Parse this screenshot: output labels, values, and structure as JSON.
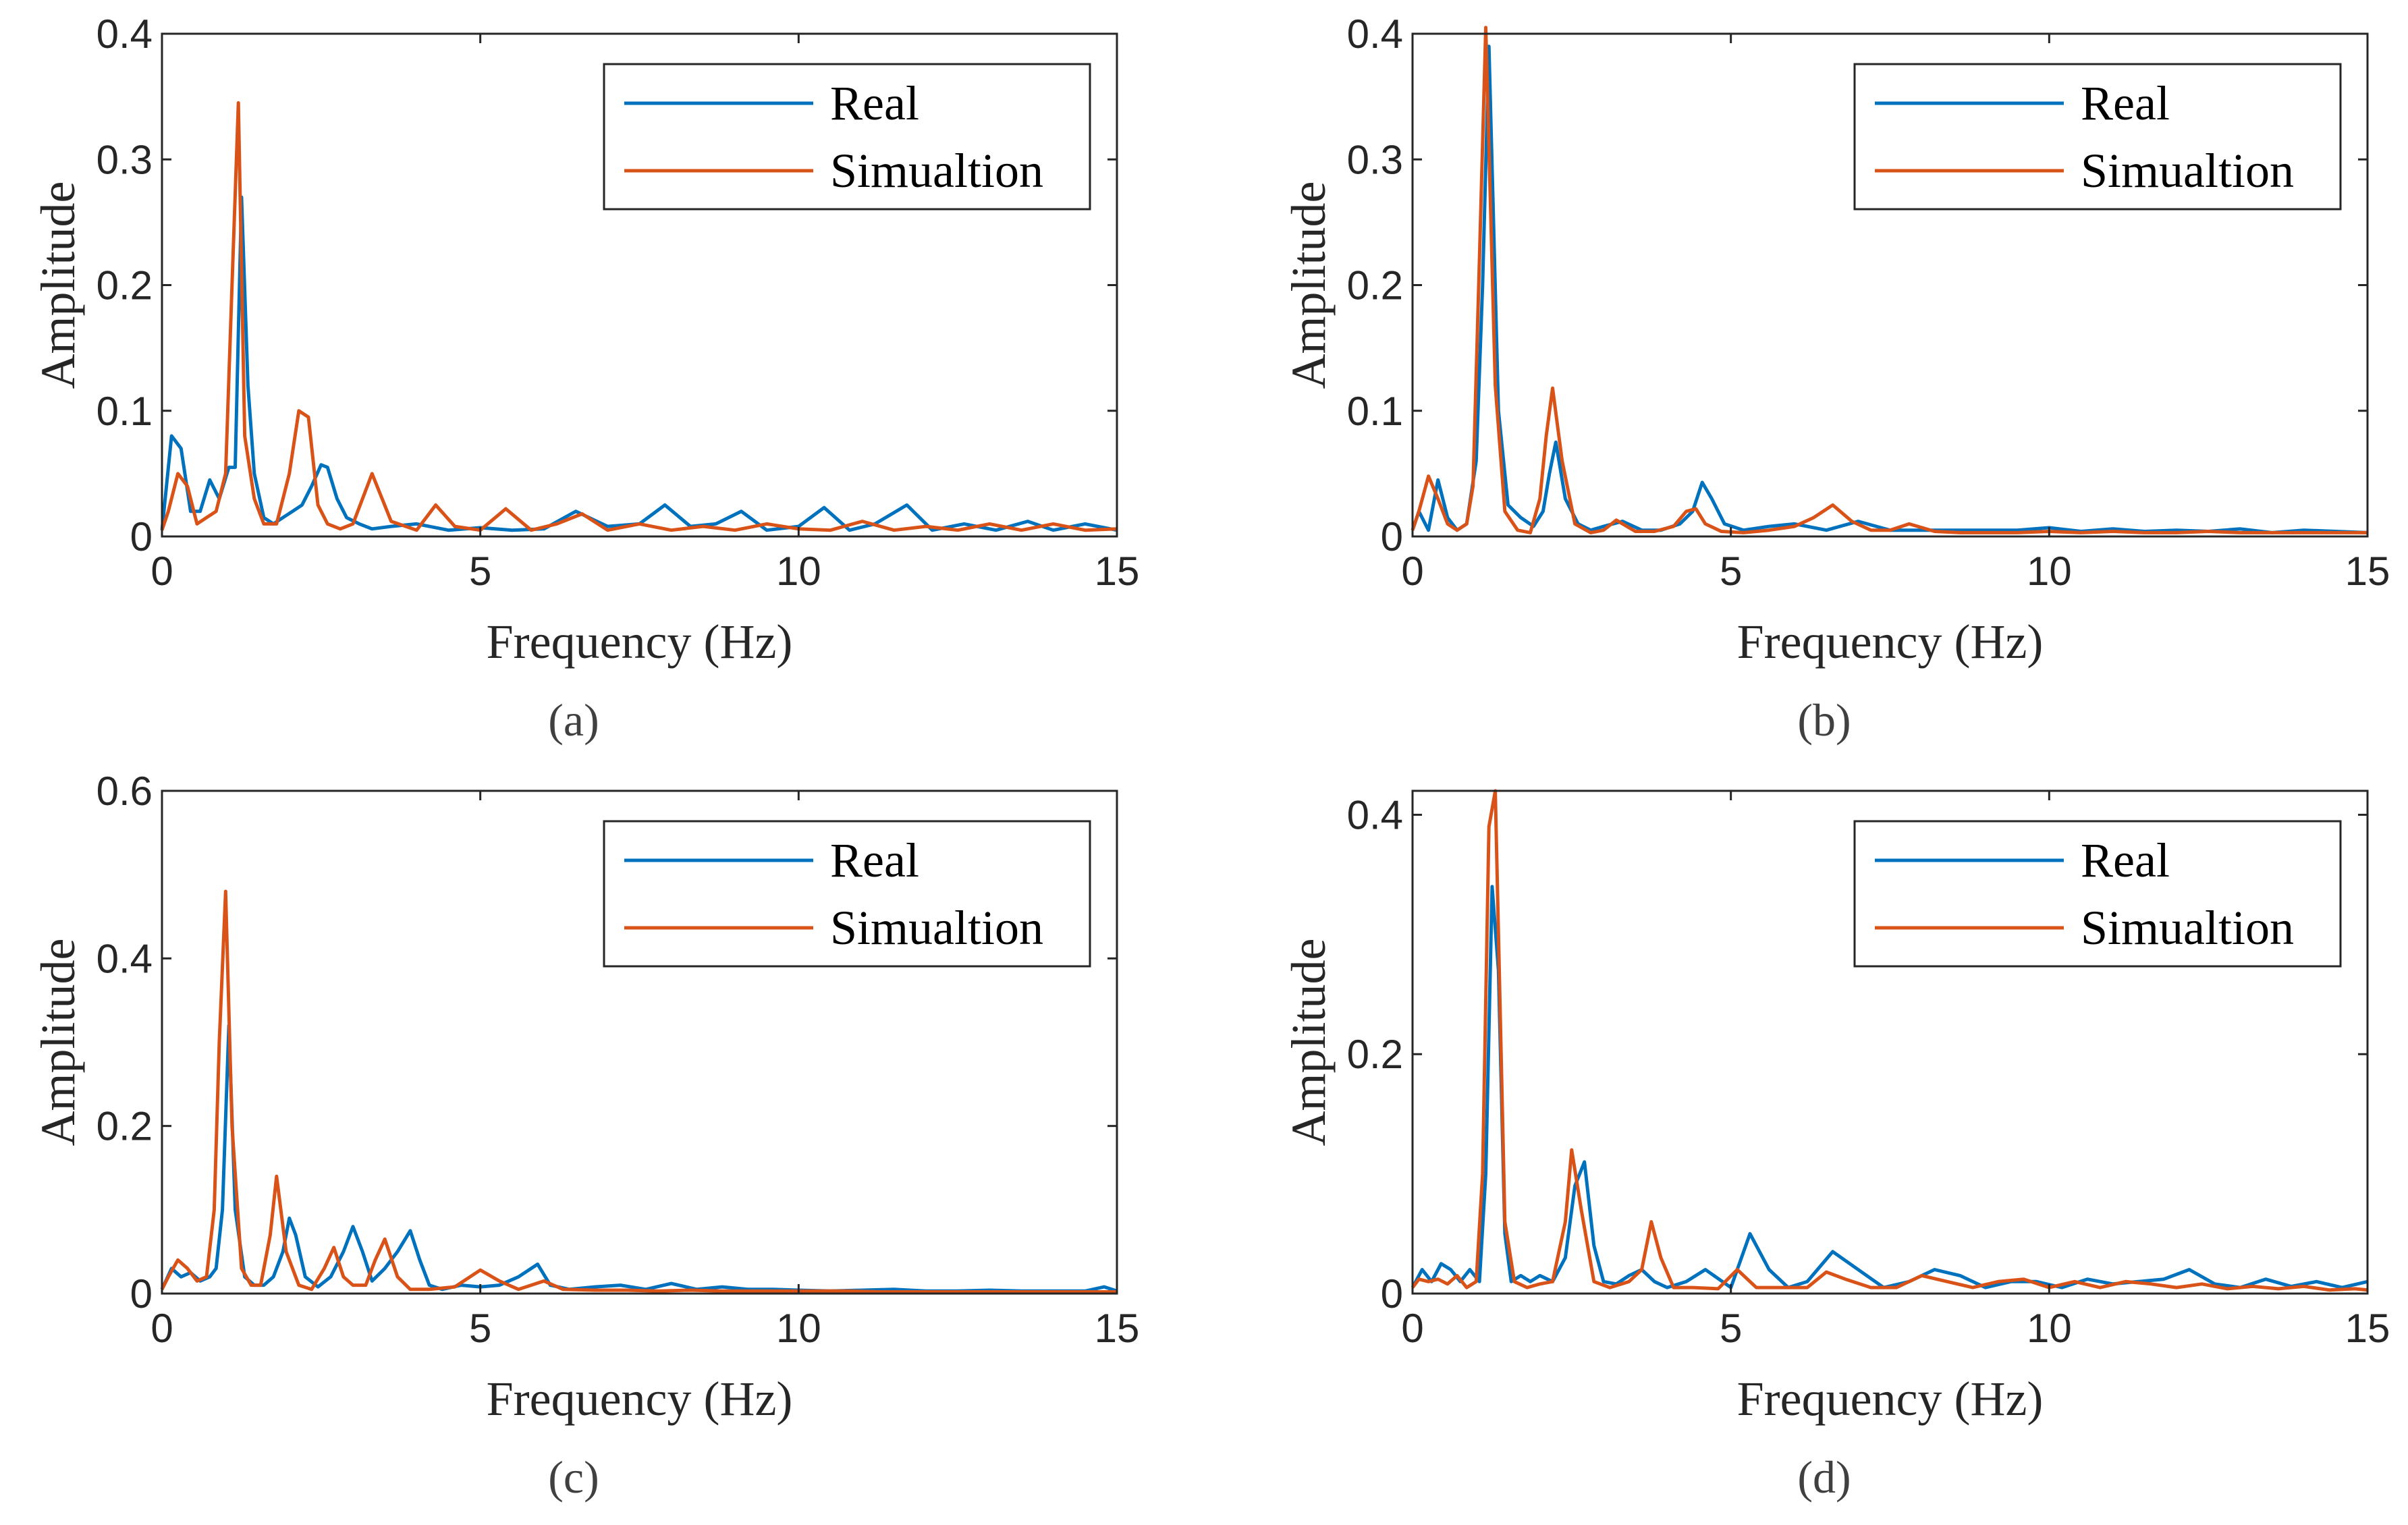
{
  "chart_data": [
    {
      "type": "line",
      "panel_caption": "(a)",
      "xlabel": "Frequency (Hz)",
      "ylabel": "Amplitude",
      "xlim": [
        0,
        15
      ],
      "ylim": [
        0,
        0.4
      ],
      "xticks": [
        "0",
        "5",
        "10",
        "15"
      ],
      "yticks": [
        "0",
        "0.1",
        "0.2",
        "0.3",
        "0.4"
      ],
      "legend_position": "top-right",
      "series": [
        {
          "name": "Real",
          "color": "#0072BD",
          "x": [
            0,
            0.15,
            0.3,
            0.45,
            0.6,
            0.75,
            0.9,
            1.05,
            1.15,
            1.25,
            1.35,
            1.45,
            1.6,
            1.75,
            1.9,
            2.05,
            2.2,
            2.35,
            2.5,
            2.6,
            2.75,
            2.9,
            3.1,
            3.3,
            3.6,
            4.0,
            4.5,
            5.0,
            5.5,
            6.0,
            6.5,
            7.0,
            7.5,
            7.9,
            8.3,
            8.7,
            9.1,
            9.5,
            10.0,
            10.4,
            10.8,
            11.2,
            11.7,
            12.1,
            12.6,
            13.1,
            13.6,
            14.0,
            14.5,
            15.0
          ],
          "y": [
            0.005,
            0.08,
            0.07,
            0.02,
            0.02,
            0.045,
            0.03,
            0.055,
            0.055,
            0.27,
            0.12,
            0.05,
            0.015,
            0.01,
            0.015,
            0.02,
            0.025,
            0.04,
            0.057,
            0.055,
            0.03,
            0.015,
            0.01,
            0.006,
            0.008,
            0.01,
            0.005,
            0.007,
            0.005,
            0.006,
            0.02,
            0.008,
            0.01,
            0.025,
            0.008,
            0.01,
            0.02,
            0.005,
            0.008,
            0.023,
            0.005,
            0.01,
            0.025,
            0.005,
            0.01,
            0.005,
            0.012,
            0.005,
            0.01,
            0.005
          ]
        },
        {
          "name": "Simualtion",
          "color": "#D95319",
          "x": [
            0,
            0.1,
            0.25,
            0.4,
            0.55,
            0.7,
            0.85,
            1.0,
            1.1,
            1.2,
            1.3,
            1.45,
            1.6,
            1.8,
            2.0,
            2.15,
            2.3,
            2.45,
            2.6,
            2.8,
            3.0,
            3.3,
            3.6,
            4.0,
            4.3,
            4.6,
            5.0,
            5.4,
            5.8,
            6.2,
            6.6,
            7.0,
            7.5,
            8.0,
            8.5,
            9.0,
            9.5,
            10.0,
            10.5,
            11.0,
            11.5,
            12.0,
            12.5,
            13.0,
            13.5,
            14.0,
            14.5,
            15.0
          ],
          "y": [
            0.005,
            0.02,
            0.05,
            0.04,
            0.01,
            0.015,
            0.02,
            0.05,
            0.2,
            0.345,
            0.08,
            0.03,
            0.01,
            0.01,
            0.05,
            0.1,
            0.095,
            0.025,
            0.01,
            0.006,
            0.01,
            0.05,
            0.012,
            0.005,
            0.025,
            0.008,
            0.005,
            0.022,
            0.005,
            0.01,
            0.018,
            0.005,
            0.01,
            0.005,
            0.008,
            0.005,
            0.01,
            0.006,
            0.005,
            0.012,
            0.005,
            0.008,
            0.005,
            0.01,
            0.005,
            0.01,
            0.005,
            0.006
          ]
        }
      ]
    },
    {
      "type": "line",
      "panel_caption": "(b)",
      "xlabel": "Frequency (Hz)",
      "ylabel": "Amplitude",
      "xlim": [
        0,
        15
      ],
      "ylim": [
        0,
        0.4
      ],
      "xticks": [
        "0",
        "5",
        "10",
        "15"
      ],
      "yticks": [
        "0",
        "0.1",
        "0.2",
        "0.3",
        "0.4"
      ],
      "legend_position": "top-right",
      "series": [
        {
          "name": "Real",
          "color": "#0072BD",
          "x": [
            0,
            0.1,
            0.25,
            0.4,
            0.55,
            0.7,
            0.85,
            1.0,
            1.1,
            1.2,
            1.35,
            1.5,
            1.7,
            1.9,
            2.05,
            2.15,
            2.25,
            2.4,
            2.6,
            2.8,
            3.0,
            3.3,
            3.6,
            3.9,
            4.2,
            4.4,
            4.55,
            4.7,
            4.9,
            5.2,
            5.6,
            6.0,
            6.5,
            7.0,
            7.5,
            8.0,
            8.5,
            9.0,
            9.5,
            10.0,
            10.5,
            11.0,
            11.5,
            12.0,
            12.5,
            13.0,
            13.5,
            14.0,
            14.5,
            15.0
          ],
          "y": [
            0.005,
            0.02,
            0.005,
            0.045,
            0.015,
            0.005,
            0.01,
            0.06,
            0.2,
            0.39,
            0.1,
            0.025,
            0.015,
            0.008,
            0.02,
            0.05,
            0.075,
            0.03,
            0.01,
            0.005,
            0.008,
            0.012,
            0.005,
            0.005,
            0.01,
            0.02,
            0.043,
            0.03,
            0.01,
            0.005,
            0.008,
            0.01,
            0.005,
            0.012,
            0.005,
            0.005,
            0.005,
            0.005,
            0.005,
            0.007,
            0.004,
            0.006,
            0.004,
            0.005,
            0.004,
            0.006,
            0.003,
            0.005,
            0.004,
            0.003
          ]
        },
        {
          "name": "Simualtion",
          "color": "#D95319",
          "x": [
            0,
            0.1,
            0.25,
            0.4,
            0.55,
            0.7,
            0.85,
            0.95,
            1.05,
            1.15,
            1.3,
            1.45,
            1.65,
            1.85,
            2.0,
            2.1,
            2.2,
            2.35,
            2.55,
            2.8,
            3.0,
            3.2,
            3.5,
            3.8,
            4.1,
            4.3,
            4.45,
            4.6,
            4.85,
            5.2,
            5.6,
            6.0,
            6.3,
            6.6,
            6.9,
            7.2,
            7.5,
            7.8,
            8.2,
            8.6,
            9.0,
            9.5,
            10.0,
            10.5,
            11.0,
            11.5,
            12.0,
            12.5,
            13.0,
            13.5,
            14.0,
            14.5,
            15.0
          ],
          "y": [
            0.005,
            0.02,
            0.048,
            0.03,
            0.01,
            0.005,
            0.01,
            0.04,
            0.22,
            0.405,
            0.12,
            0.02,
            0.005,
            0.003,
            0.03,
            0.08,
            0.118,
            0.06,
            0.01,
            0.003,
            0.005,
            0.013,
            0.004,
            0.004,
            0.008,
            0.02,
            0.022,
            0.01,
            0.004,
            0.003,
            0.005,
            0.008,
            0.015,
            0.025,
            0.012,
            0.005,
            0.005,
            0.01,
            0.004,
            0.003,
            0.003,
            0.003,
            0.004,
            0.003,
            0.004,
            0.003,
            0.003,
            0.004,
            0.003,
            0.003,
            0.003,
            0.003,
            0.003
          ]
        }
      ]
    },
    {
      "type": "line",
      "panel_caption": "(c)",
      "xlabel": "Frequency (Hz)",
      "ylabel": "Amplitude",
      "xlim": [
        0,
        15
      ],
      "ylim": [
        0,
        0.6
      ],
      "xticks": [
        "0",
        "5",
        "10",
        "15"
      ],
      "yticks": [
        "0",
        "0.2",
        "0.4",
        "0.6"
      ],
      "legend_position": "top-right",
      "series": [
        {
          "name": "Real",
          "color": "#0072BD",
          "x": [
            0,
            0.15,
            0.3,
            0.45,
            0.6,
            0.75,
            0.85,
            0.95,
            1.05,
            1.15,
            1.3,
            1.45,
            1.6,
            1.75,
            1.9,
            2.0,
            2.1,
            2.25,
            2.45,
            2.65,
            2.85,
            3.0,
            3.15,
            3.3,
            3.5,
            3.7,
            3.9,
            4.05,
            4.2,
            4.4,
            4.7,
            5.0,
            5.3,
            5.6,
            5.9,
            6.1,
            6.4,
            6.8,
            7.2,
            7.6,
            8.0,
            8.4,
            8.8,
            9.2,
            9.6,
            10.0,
            10.5,
            11.0,
            11.5,
            12.0,
            12.5,
            13.0,
            13.5,
            14.0,
            14.5,
            14.8,
            15.0
          ],
          "y": [
            0.005,
            0.03,
            0.02,
            0.025,
            0.015,
            0.02,
            0.03,
            0.1,
            0.32,
            0.1,
            0.02,
            0.01,
            0.01,
            0.02,
            0.05,
            0.09,
            0.07,
            0.02,
            0.008,
            0.02,
            0.05,
            0.08,
            0.05,
            0.015,
            0.03,
            0.05,
            0.075,
            0.04,
            0.01,
            0.005,
            0.01,
            0.008,
            0.01,
            0.02,
            0.035,
            0.01,
            0.005,
            0.008,
            0.01,
            0.005,
            0.012,
            0.005,
            0.008,
            0.005,
            0.005,
            0.004,
            0.003,
            0.004,
            0.005,
            0.003,
            0.003,
            0.004,
            0.003,
            0.003,
            0.003,
            0.008,
            0.003
          ]
        },
        {
          "name": "Simualtion",
          "color": "#D95319",
          "x": [
            0,
            0.1,
            0.25,
            0.4,
            0.55,
            0.7,
            0.82,
            0.9,
            1.0,
            1.1,
            1.25,
            1.4,
            1.55,
            1.7,
            1.8,
            1.95,
            2.15,
            2.35,
            2.55,
            2.7,
            2.85,
            3.0,
            3.2,
            3.35,
            3.5,
            3.7,
            3.9,
            4.2,
            4.6,
            5.0,
            5.3,
            5.6,
            6.0,
            6.3,
            6.8,
            7.3,
            7.8,
            8.3,
            8.8,
            9.3,
            9.8,
            10.3,
            10.8,
            11.3,
            11.8,
            12.3,
            12.8,
            13.3,
            13.8,
            14.3,
            14.8,
            15.0
          ],
          "y": [
            0.005,
            0.02,
            0.04,
            0.03,
            0.015,
            0.02,
            0.1,
            0.3,
            0.48,
            0.2,
            0.03,
            0.01,
            0.01,
            0.07,
            0.14,
            0.05,
            0.01,
            0.005,
            0.03,
            0.055,
            0.02,
            0.01,
            0.01,
            0.04,
            0.065,
            0.02,
            0.005,
            0.005,
            0.008,
            0.028,
            0.015,
            0.005,
            0.015,
            0.005,
            0.004,
            0.004,
            0.003,
            0.004,
            0.003,
            0.003,
            0.003,
            0.003,
            0.003,
            0.002,
            0.002,
            0.002,
            0.002,
            0.002,
            0.002,
            0.002,
            0.002,
            0.002
          ]
        }
      ]
    },
    {
      "type": "line",
      "panel_caption": "(d)",
      "xlabel": "Frequency (Hz)",
      "ylabel": "Amplitude",
      "xlim": [
        0,
        15
      ],
      "ylim": [
        0,
        0.42
      ],
      "xticks": [
        "0",
        "5",
        "10",
        "15"
      ],
      "yticks": [
        "0",
        "0.2",
        "0.4"
      ],
      "legend_position": "top-right",
      "series": [
        {
          "name": "Real",
          "color": "#0072BD",
          "x": [
            0,
            0.15,
            0.3,
            0.45,
            0.6,
            0.75,
            0.9,
            1.05,
            1.15,
            1.25,
            1.35,
            1.45,
            1.55,
            1.7,
            1.85,
            2.0,
            2.2,
            2.4,
            2.55,
            2.7,
            2.85,
            3.0,
            3.2,
            3.4,
            3.6,
            3.8,
            4.0,
            4.3,
            4.6,
            5.0,
            5.3,
            5.6,
            5.9,
            6.2,
            6.6,
            7.0,
            7.4,
            7.8,
            8.2,
            8.6,
            9.0,
            9.4,
            9.8,
            10.2,
            10.6,
            11.0,
            11.4,
            11.8,
            12.2,
            12.6,
            13.0,
            13.4,
            13.8,
            14.2,
            14.6,
            15.0
          ],
          "y": [
            0.005,
            0.02,
            0.01,
            0.025,
            0.02,
            0.01,
            0.02,
            0.01,
            0.1,
            0.34,
            0.27,
            0.05,
            0.01,
            0.015,
            0.01,
            0.015,
            0.01,
            0.03,
            0.09,
            0.11,
            0.04,
            0.01,
            0.008,
            0.015,
            0.02,
            0.01,
            0.005,
            0.01,
            0.02,
            0.005,
            0.05,
            0.02,
            0.005,
            0.01,
            0.035,
            0.02,
            0.005,
            0.01,
            0.02,
            0.015,
            0.005,
            0.01,
            0.01,
            0.005,
            0.012,
            0.008,
            0.01,
            0.012,
            0.02,
            0.008,
            0.005,
            0.012,
            0.006,
            0.01,
            0.005,
            0.01
          ]
        },
        {
          "name": "Simualtion",
          "color": "#D95319",
          "x": [
            0,
            0.1,
            0.25,
            0.4,
            0.55,
            0.7,
            0.85,
            1.0,
            1.1,
            1.2,
            1.3,
            1.45,
            1.6,
            1.8,
            2.0,
            2.2,
            2.4,
            2.5,
            2.65,
            2.85,
            3.1,
            3.4,
            3.6,
            3.75,
            3.9,
            4.1,
            4.4,
            4.8,
            5.1,
            5.4,
            5.8,
            6.2,
            6.5,
            6.8,
            7.2,
            7.6,
            8.0,
            8.4,
            8.8,
            9.2,
            9.6,
            10.0,
            10.4,
            10.8,
            11.2,
            11.6,
            12.0,
            12.4,
            12.8,
            13.2,
            13.6,
            14.0,
            14.4,
            14.8,
            15.0
          ],
          "y": [
            0.005,
            0.012,
            0.01,
            0.012,
            0.008,
            0.015,
            0.005,
            0.01,
            0.1,
            0.39,
            0.42,
            0.06,
            0.01,
            0.005,
            0.008,
            0.01,
            0.06,
            0.12,
            0.07,
            0.01,
            0.005,
            0.01,
            0.02,
            0.06,
            0.03,
            0.005,
            0.005,
            0.004,
            0.02,
            0.005,
            0.005,
            0.005,
            0.018,
            0.012,
            0.005,
            0.005,
            0.015,
            0.01,
            0.005,
            0.01,
            0.012,
            0.005,
            0.01,
            0.005,
            0.01,
            0.008,
            0.005,
            0.008,
            0.004,
            0.006,
            0.004,
            0.006,
            0.003,
            0.004,
            0.003
          ]
        }
      ]
    }
  ]
}
